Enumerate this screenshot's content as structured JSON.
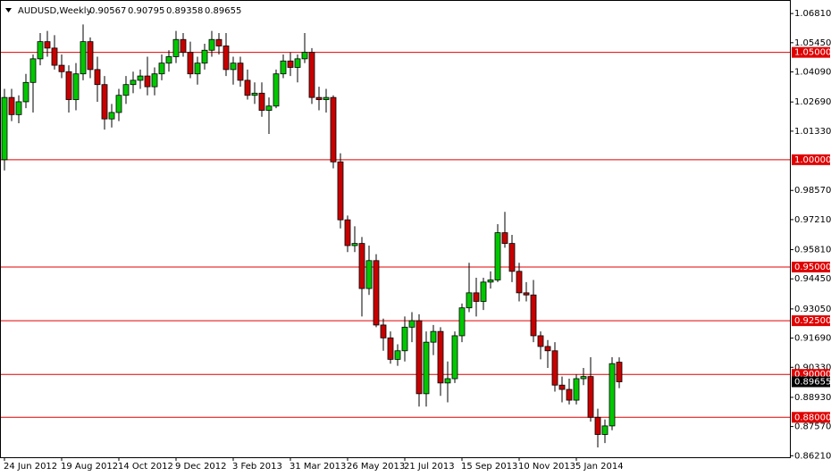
{
  "chart_data": {
    "type": "candlestick",
    "symbol": "AUDUSD,Weekly",
    "categories": [
      "24 Jun 2012",
      null,
      null,
      null,
      null,
      null,
      null,
      null,
      "19 Aug 2012",
      null,
      null,
      null,
      null,
      null,
      null,
      null,
      "14 Oct 2012",
      null,
      null,
      null,
      null,
      null,
      null,
      null,
      "9 Dec 2012",
      null,
      null,
      null,
      null,
      null,
      null,
      null,
      "3 Feb 2013",
      null,
      null,
      null,
      null,
      null,
      null,
      null,
      "31 Mar 2013",
      null,
      null,
      null,
      null,
      null,
      null,
      null,
      "26 May 2013",
      null,
      null,
      null,
      null,
      null,
      null,
      null,
      "21 Jul 2013",
      null,
      null,
      null,
      null,
      null,
      null,
      null,
      "15 Sep 2013",
      null,
      null,
      null,
      null,
      null,
      null,
      null,
      "10 Nov 2013",
      null,
      null,
      null,
      null,
      null,
      null,
      null,
      "5 Jan 2014",
      null,
      null,
      null,
      null,
      null,
      null
    ],
    "open": [
      1.0,
      1.029,
      1.021,
      1.027,
      1.036,
      1.047,
      1.055,
      1.052,
      1.044,
      1.041,
      1.028,
      1.04,
      1.055,
      1.042,
      1.035,
      1.019,
      1.022,
      1.03,
      1.035,
      1.037,
      1.039,
      1.034,
      1.04,
      1.045,
      1.048,
      1.056,
      1.05,
      1.04,
      1.045,
      1.051,
      1.056,
      1.053,
      1.042,
      1.045,
      1.037,
      1.03,
      1.031,
      1.023,
      1.025,
      1.04,
      1.046,
      1.043,
      1.047,
      1.05,
      1.029,
      1.028,
      1.029,
      0.999,
      0.972,
      0.96,
      0.961,
      0.94,
      0.953,
      0.923,
      0.917,
      0.907,
      0.911,
      0.922,
      0.925,
      0.891,
      0.915,
      0.92,
      0.896,
      0.898,
      0.918,
      0.931,
      0.938,
      0.934,
      0.943,
      0.944,
      0.966,
      0.961,
      0.948,
      0.938,
      0.937,
      0.918,
      0.913,
      0.911,
      0.895,
      0.893,
      0.888,
      0.898,
      0.899,
      0.88,
      0.872,
      0.876,
      0.90567
    ],
    "high": [
      1.033,
      1.033,
      1.03,
      1.04,
      1.049,
      1.059,
      1.06,
      1.058,
      1.049,
      1.044,
      1.045,
      1.063,
      1.057,
      1.048,
      1.039,
      1.026,
      1.033,
      1.039,
      1.041,
      1.042,
      1.048,
      1.043,
      1.049,
      1.051,
      1.06,
      1.059,
      1.055,
      1.048,
      1.054,
      1.06,
      1.059,
      1.059,
      1.048,
      1.048,
      1.042,
      1.036,
      1.036,
      1.029,
      1.042,
      1.049,
      1.05,
      1.049,
      1.059,
      1.052,
      1.034,
      1.033,
      1.03,
      1.003,
      0.974,
      0.969,
      0.964,
      0.96,
      0.956,
      0.926,
      0.92,
      0.914,
      0.927,
      0.929,
      0.928,
      0.92,
      0.923,
      0.922,
      0.906,
      0.92,
      0.933,
      0.952,
      0.945,
      0.945,
      0.948,
      0.97,
      0.9757,
      0.965,
      0.952,
      0.943,
      0.944,
      0.92,
      0.916,
      0.915,
      0.899,
      0.898,
      0.9,
      0.903,
      0.908,
      0.884,
      0.879,
      0.908,
      0.90795
    ],
    "low": [
      0.995,
      1.018,
      1.017,
      1.024,
      1.022,
      1.044,
      1.048,
      1.042,
      1.038,
      1.022,
      1.023,
      1.037,
      1.038,
      1.027,
      1.014,
      1.015,
      1.018,
      1.026,
      1.031,
      1.033,
      1.03,
      1.03,
      1.037,
      1.041,
      1.045,
      1.048,
      1.038,
      1.035,
      1.042,
      1.048,
      1.049,
      1.039,
      1.035,
      1.034,
      1.028,
      1.026,
      1.02,
      1.012,
      1.024,
      1.038,
      1.039,
      1.036,
      1.045,
      1.026,
      1.023,
      1.022,
      0.996,
      0.968,
      0.957,
      0.957,
      0.927,
      0.937,
      0.922,
      0.911,
      0.905,
      0.904,
      0.906,
      0.915,
      0.885,
      0.885,
      0.909,
      0.89,
      0.887,
      0.896,
      0.915,
      0.929,
      0.927,
      0.93,
      0.94,
      0.943,
      0.959,
      0.943,
      0.934,
      0.934,
      0.915,
      0.907,
      0.903,
      0.892,
      0.887,
      0.886,
      0.886,
      0.895,
      0.878,
      0.866,
      0.868,
      0.874,
      0.89358
    ],
    "close": [
      1.029,
      1.021,
      1.027,
      1.036,
      1.047,
      1.055,
      1.052,
      1.044,
      1.041,
      1.028,
      1.04,
      1.055,
      1.042,
      1.035,
      1.019,
      1.022,
      1.03,
      1.035,
      1.037,
      1.039,
      1.034,
      1.04,
      1.045,
      1.048,
      1.056,
      1.05,
      1.04,
      1.045,
      1.051,
      1.056,
      1.053,
      1.042,
      1.045,
      1.037,
      1.03,
      1.031,
      1.023,
      1.025,
      1.04,
      1.046,
      1.043,
      1.047,
      1.05,
      1.029,
      1.028,
      1.029,
      0.999,
      0.972,
      0.96,
      0.961,
      0.94,
      0.953,
      0.923,
      0.917,
      0.907,
      0.911,
      0.922,
      0.925,
      0.891,
      0.915,
      0.92,
      0.896,
      0.898,
      0.918,
      0.931,
      0.938,
      0.934,
      0.943,
      0.944,
      0.966,
      0.961,
      0.948,
      0.938,
      0.937,
      0.918,
      0.913,
      0.911,
      0.895,
      0.893,
      0.888,
      0.898,
      0.899,
      0.88,
      0.872,
      0.876,
      0.905,
      0.89655
    ],
    "up_color": "#00c800",
    "down_color": "#c80000",
    "ylim": [
      0.8614,
      1.0744
    ],
    "yticks": [
      {
        "value": 1.0681,
        "label": "1.06810"
      },
      {
        "value": 1.0545,
        "label": "1.05450"
      },
      {
        "value": 1.0409,
        "label": "1.04090"
      },
      {
        "value": 1.0269,
        "label": "1.02690"
      },
      {
        "value": 1.0133,
        "label": "1.01330"
      },
      {
        "value": 0.9857,
        "label": "0.98570"
      },
      {
        "value": 0.9721,
        "label": "0.97210"
      },
      {
        "value": 0.9581,
        "label": "0.95810"
      },
      {
        "value": 0.9445,
        "label": "0.94450"
      },
      {
        "value": 0.9305,
        "label": "0.93050"
      },
      {
        "value": 0.9169,
        "label": "0.91690"
      },
      {
        "value": 0.9033,
        "label": "0.90330"
      },
      {
        "value": 0.8893,
        "label": "0.88930"
      },
      {
        "value": 0.8757,
        "label": "0.87570"
      },
      {
        "value": 0.8621,
        "label": "0.86210"
      }
    ],
    "hlines": [
      {
        "value": 1.05,
        "label": "1.05000"
      },
      {
        "value": 1.0,
        "label": "1.00000"
      },
      {
        "value": 0.95,
        "label": "0.95000"
      },
      {
        "value": 0.925,
        "label": "0.92500"
      },
      {
        "value": 0.9,
        "label": "0.90000"
      },
      {
        "value": 0.88,
        "label": "0.88000"
      }
    ],
    "hline_color": "#e00000"
  }
}
